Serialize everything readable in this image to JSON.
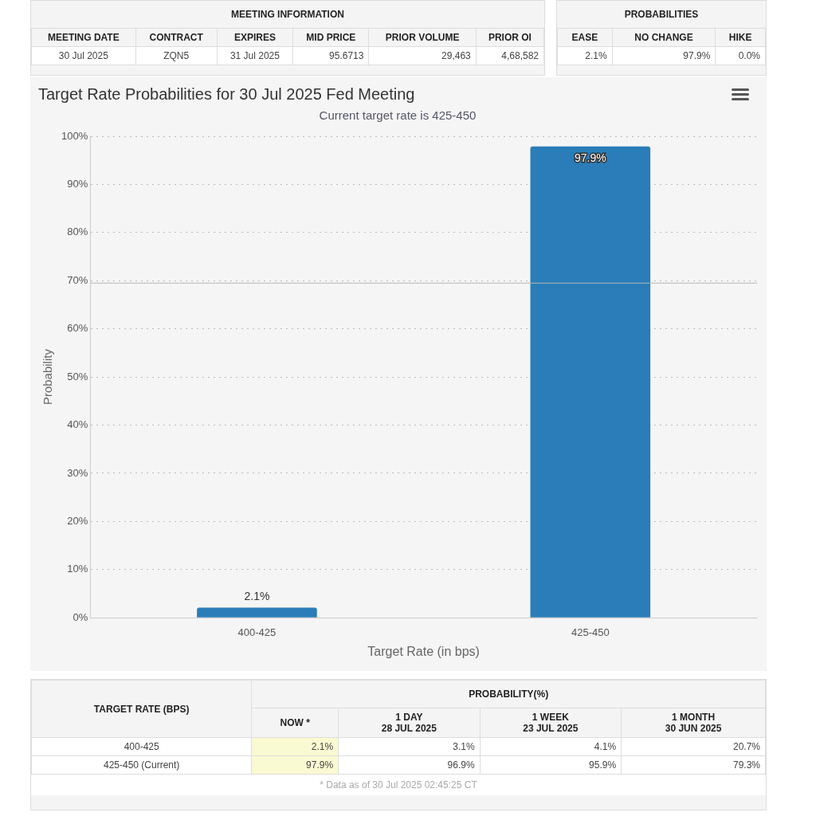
{
  "chart_data": [
    {
      "type": "other",
      "title": "MEETING INFORMATION",
      "categories": [
        "MEETING DATE",
        "CONTRACT",
        "EXPIRES",
        "MID PRICE",
        "PRIOR VOLUME",
        "PRIOR OI"
      ],
      "annotations": [
        "30 Jul 2025",
        "ZQN5",
        "31 Jul 2025",
        "95.6713",
        "29,463",
        "4,68,582"
      ]
    },
    {
      "type": "other",
      "title": "PROBABILITIES",
      "categories": [
        "EASE",
        "NO CHANGE",
        "HIKE"
      ],
      "annotations": [
        "2.1%",
        "97.9%",
        "0.0%"
      ]
    },
    {
      "type": "bar",
      "title": "Target Rate Probabilities for 30 Jul 2025 Fed Meeting",
      "subtitle": "Current target rate is 425-450",
      "xlabel": "Target Rate (in bps)",
      "ylabel": "Probability",
      "categories": [
        "400-425",
        "425-450"
      ],
      "values": [
        2.1,
        97.9
      ],
      "color": "#2a7db8",
      "value_labels": [
        "2.1%",
        "97.9%"
      ],
      "ylim": [
        0,
        100
      ],
      "yticks": [
        {
          "value": 0,
          "label": "0%"
        },
        {
          "value": 10,
          "label": "10%"
        },
        {
          "value": 20,
          "label": "20%"
        },
        {
          "value": 30,
          "label": "30%"
        },
        {
          "value": 40,
          "label": "40%"
        },
        {
          "value": 50,
          "label": "50%"
        },
        {
          "value": 60,
          "label": "60%"
        },
        {
          "value": 70,
          "label": "70%"
        },
        {
          "value": 80,
          "label": "80%"
        },
        {
          "value": 90,
          "label": "90%"
        },
        {
          "value": 100,
          "label": "100%"
        }
      ],
      "ref_lines": [
        {
          "axis": "y",
          "value": 69.5,
          "color": "#b5b5b5"
        }
      ],
      "grid": "y",
      "legend": false
    },
    {
      "type": "other",
      "title": "PROBABILITY(%)",
      "subtitle": "* Data as of 30 Jul 2025 02:45:25 CT",
      "categories": [
        "TARGET RATE (BPS)",
        "NOW *",
        "1 DAY\n28 JUL 2025",
        "1 WEEK\n23 JUL 2025",
        "1 MONTH\n30 JUN 2025"
      ],
      "annotations": [
        "400-425",
        "2.1%",
        "3.1%",
        "4.1%",
        "20.7%",
        "425-450 (Current)",
        "97.9%",
        "96.9%",
        "95.9%",
        "79.3%"
      ]
    }
  ]
}
